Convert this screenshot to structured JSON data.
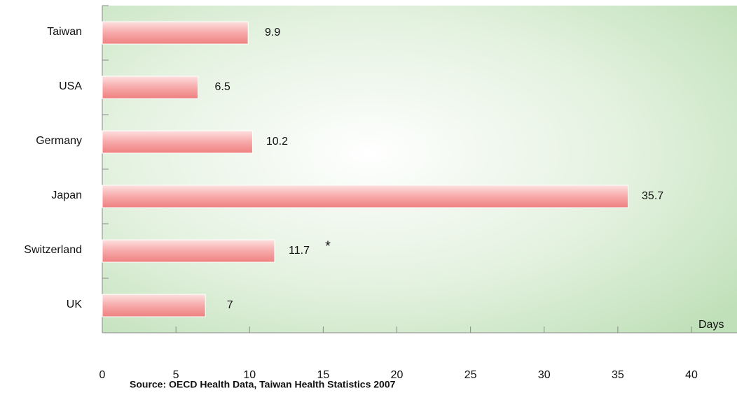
{
  "chart_data": {
    "type": "bar",
    "orientation": "horizontal",
    "categories": [
      "Taiwan",
      "USA",
      "Germany",
      "Japan",
      "Switzerland",
      "UK"
    ],
    "values": [
      9.9,
      6.5,
      10.2,
      35.7,
      11.7,
      7
    ],
    "color": "#f28c8c",
    "xlim": [
      0,
      40
    ],
    "xticks": [
      0,
      5,
      10,
      15,
      20,
      25,
      30,
      35,
      40
    ],
    "x_label": "Days",
    "annotation": "*",
    "source": "Source: OECD Health Data,  Taiwan Health Statistics 2007"
  }
}
